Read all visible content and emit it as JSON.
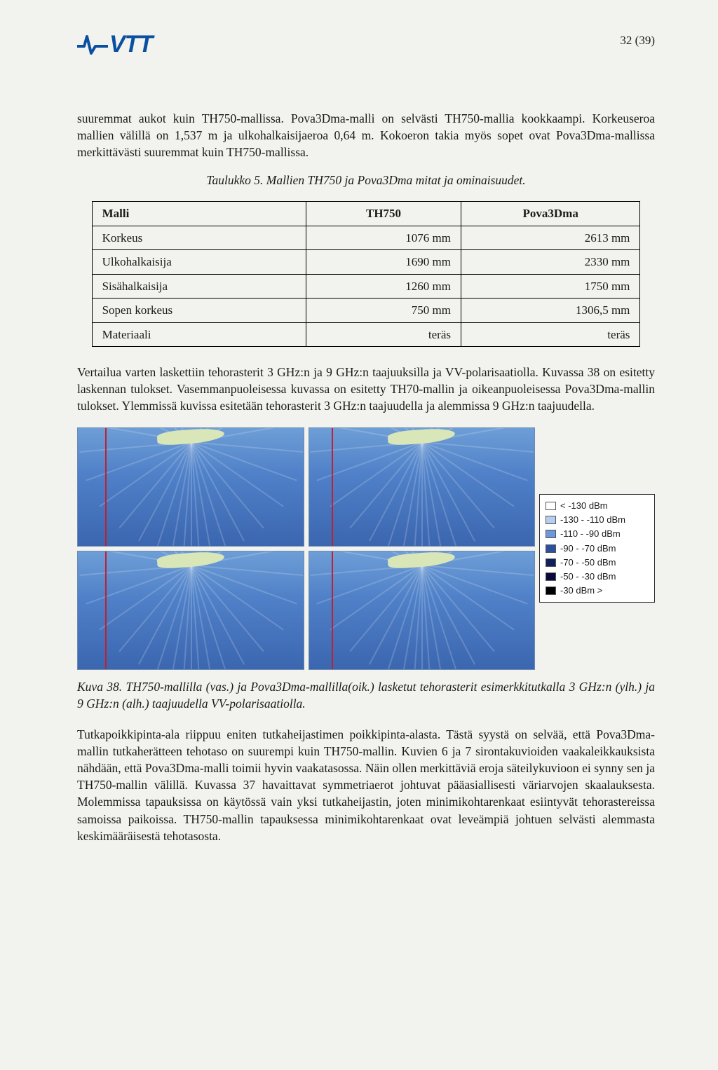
{
  "header": {
    "logo_text": "VTT",
    "page_number": "32 (39)"
  },
  "paragraphs": {
    "p1": "suuremmat aukot kuin TH750-mallissa. Pova3Dma-malli on selvästi TH750-mallia kookkaampi. Korkeuseroa mallien välillä on 1,537 m ja ulkohalkaisijaeroa 0,64 m. Kokoeron takia myös sopet ovat Pova3Dma-mallissa merkittävästi suuremmat kuin TH750-mallissa.",
    "table_caption": "Taulukko 5. Mallien TH750 ja Pova3Dma mitat ja ominaisuudet.",
    "p2": "Vertailua varten laskettiin tehorasterit 3 GHz:n ja 9 GHz:n taajuuksilla ja VV-polarisaatiolla. Kuvassa 38 on esitetty laskennan tulokset. Vasemmanpuoleisessa kuvassa on esitetty TH70-mallin ja oikeanpuoleisessa Pova3Dma-mallin tulokset. Ylemmissä kuvissa esitetään tehorasterit 3 GHz:n taajuudella ja alemmissa 9 GHz:n taajuudella.",
    "fig_caption": "Kuva 38. TH750-mallilla (vas.) ja Pova3Dma-mallilla(oik.) lasketut tehorasterit esimerkkitutkalla 3 GHz:n (ylh.) ja 9 GHz:n (alh.) taajuudella VV-polarisaatiolla.",
    "p3": "Tutkapoikkipinta-ala riippuu eniten tutkaheijastimen poikkipinta-alasta. Tästä syystä on selvää, että Pova3Dma-mallin tutkaherätteen tehotaso on suurempi kuin TH750-mallin. Kuvien 6 ja 7 sirontakuvioiden vaakaleikkauksista nähdään, että Pova3Dma-malli toimii hyvin vaakatasossa. Näin ollen merkittäviä eroja säteilykuvioon ei synny sen ja TH750-mallin välillä. Kuvassa 37 havaittavat symmetriaerot johtuvat pääasiallisesti väriarvojen skaalauksesta. Molemmissa tapauksissa on käytössä vain yksi tutkaheijastin, joten minimikohtarenkaat esiintyvät tehorastereissa samoissa paikoissa. TH750-mallin tapauksessa minimikohtarenkaat ovat leveämpiä johtuen selvästi alemmasta keskimääräisestä tehotasosta."
  },
  "table": {
    "headers": [
      "Malli",
      "TH750",
      "Pova3Dma"
    ],
    "rows": [
      [
        "Korkeus",
        "1076 mm",
        "2613 mm"
      ],
      [
        "Ulkohalkaisija",
        "1690 mm",
        "2330 mm"
      ],
      [
        "Sisähalkaisija",
        "1260 mm",
        "1750 mm"
      ],
      [
        "Sopen korkeus",
        "750 mm",
        "1306,5 mm"
      ],
      [
        "Materiaali",
        "teräs",
        "teräs"
      ]
    ]
  },
  "figure": {
    "panel_bg_gradient_top": "#6e9ed6",
    "panel_bg_gradient_mid": "#4f80c8",
    "panel_bg_gradient_bot": "#3b66b0",
    "land_color": "#d8e6b8",
    "vline_color": "#c02030",
    "fan_color": "#dfe8f5",
    "border_color": "#6b8bb0",
    "fan_angles": [
      -70,
      -55,
      -40,
      -28,
      -18,
      -10,
      -4,
      0,
      4,
      10,
      18,
      28,
      40,
      55,
      70,
      85,
      100,
      115,
      130,
      145,
      -85,
      -100,
      -115,
      -130,
      -145
    ],
    "legend": [
      {
        "color": "#ffffff",
        "label": "< -130 dBm"
      },
      {
        "color": "#b7cfee",
        "label": "-130 - -110 dBm"
      },
      {
        "color": "#6d99d8",
        "label": "-110 - -90 dBm"
      },
      {
        "color": "#2c4fa0",
        "label": "-90 - -70 dBm"
      },
      {
        "color": "#12205a",
        "label": "-70 - -50 dBm"
      },
      {
        "color": "#0a0a3a",
        "label": "-50 - -30 dBm"
      },
      {
        "color": "#000000",
        "label": "-30 dBm >"
      }
    ]
  },
  "colors": {
    "logo": "#0b4fa0",
    "text": "#1a1a1a",
    "page_bg": "#f2f2ee",
    "table_border": "#000000"
  }
}
